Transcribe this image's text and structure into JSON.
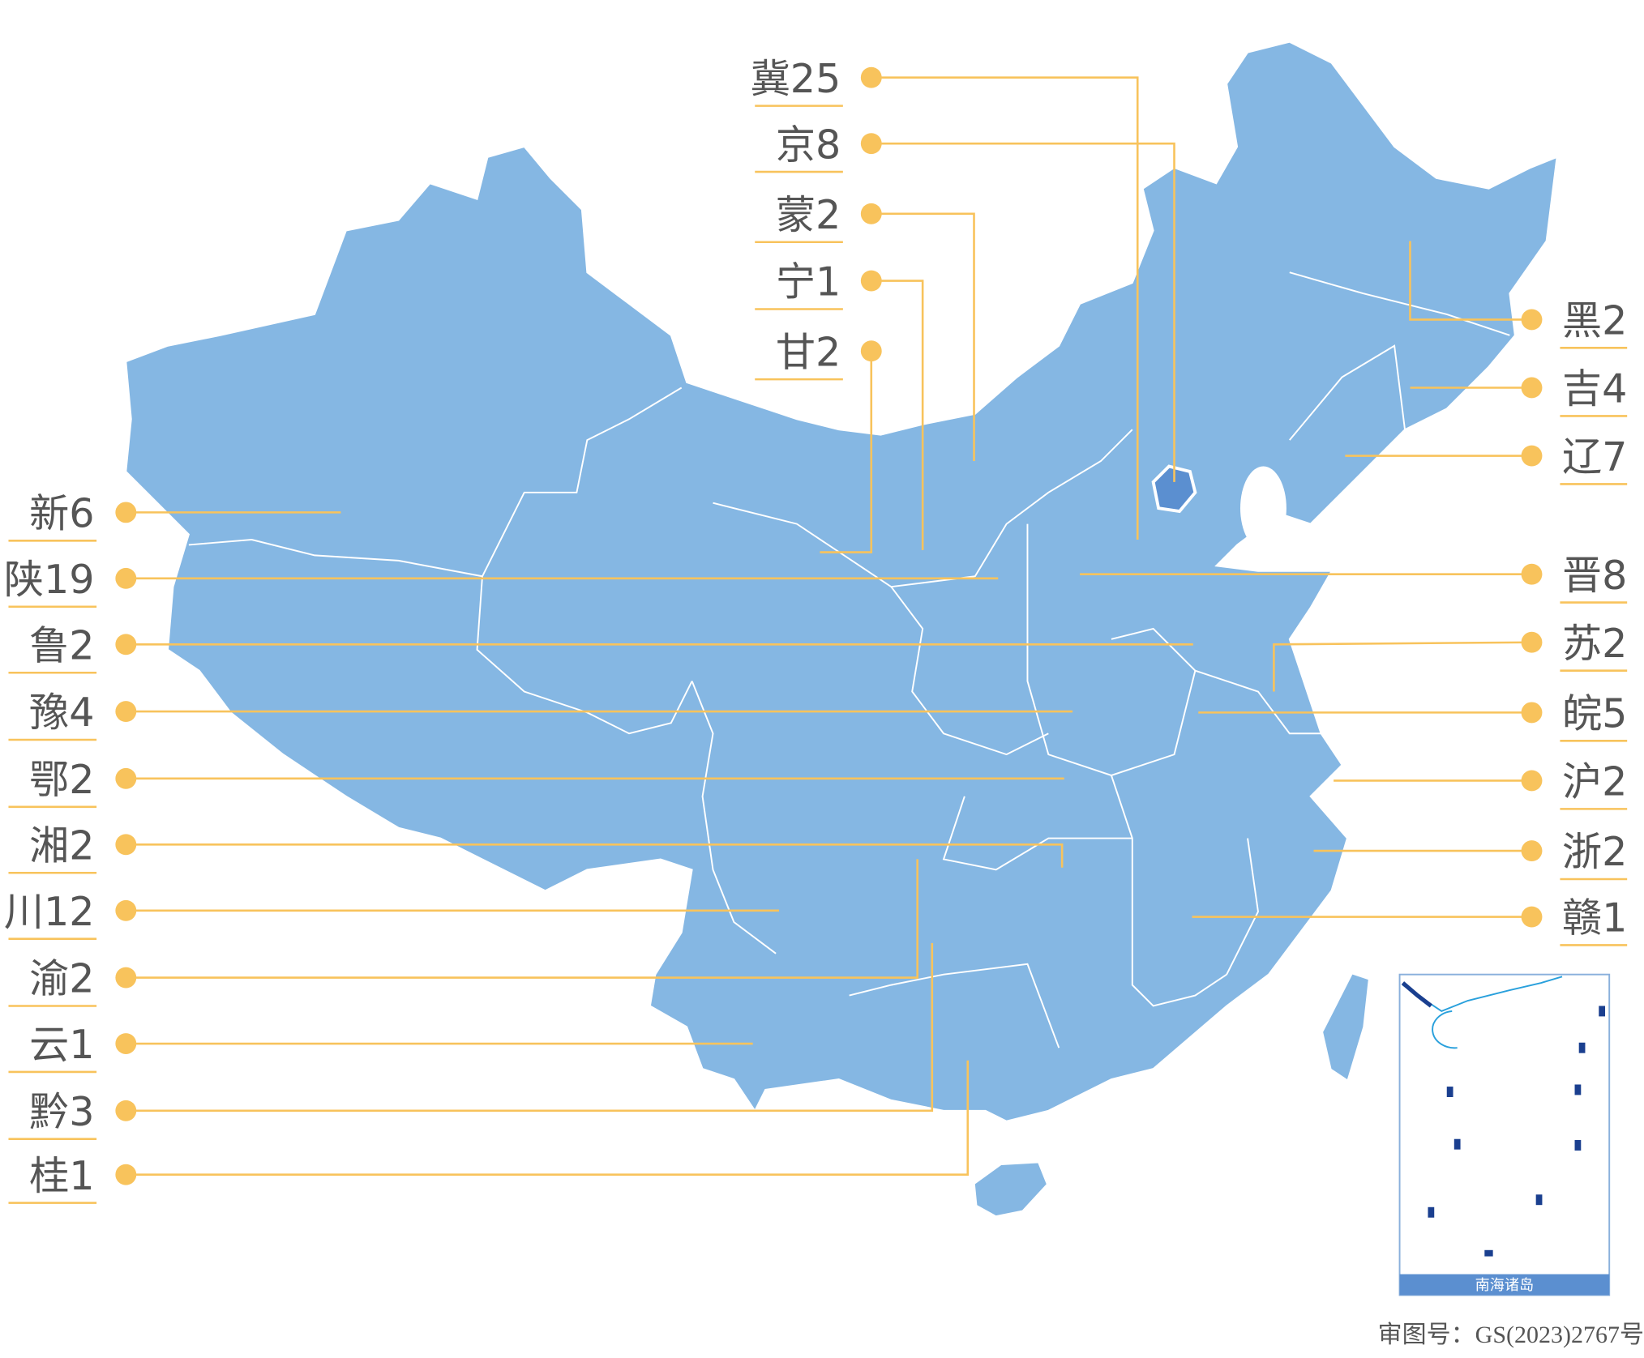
{
  "colors": {
    "province_fill": "#85b7e3",
    "capital_fill": "#5b8fd0",
    "leader": "#f8c35c",
    "text": "#555555",
    "inset_bar": "#5b8fd0"
  },
  "labels_top": [
    {
      "label": "冀25"
    },
    {
      "label": "京8"
    },
    {
      "label": "蒙2"
    },
    {
      "label": "宁1"
    },
    {
      "label": "甘2"
    }
  ],
  "labels_left": [
    {
      "label": "新6"
    },
    {
      "label": "陕19"
    },
    {
      "label": "鲁2"
    },
    {
      "label": "豫4"
    },
    {
      "label": "鄂2"
    },
    {
      "label": "湘2"
    },
    {
      "label": "川12"
    },
    {
      "label": "渝2"
    },
    {
      "label": "云1"
    },
    {
      "label": "黔3"
    },
    {
      "label": "桂1"
    }
  ],
  "labels_right": [
    {
      "label": "黑2"
    },
    {
      "label": "吉4"
    },
    {
      "label": "辽7"
    },
    {
      "label": "晋8"
    },
    {
      "label": "苏2"
    },
    {
      "label": "皖5"
    },
    {
      "label": "沪2"
    },
    {
      "label": "浙2"
    },
    {
      "label": "赣1"
    }
  ],
  "inset": {
    "title": "南海诸岛"
  },
  "approval_number": "审图号：GS(2023)2767号"
}
